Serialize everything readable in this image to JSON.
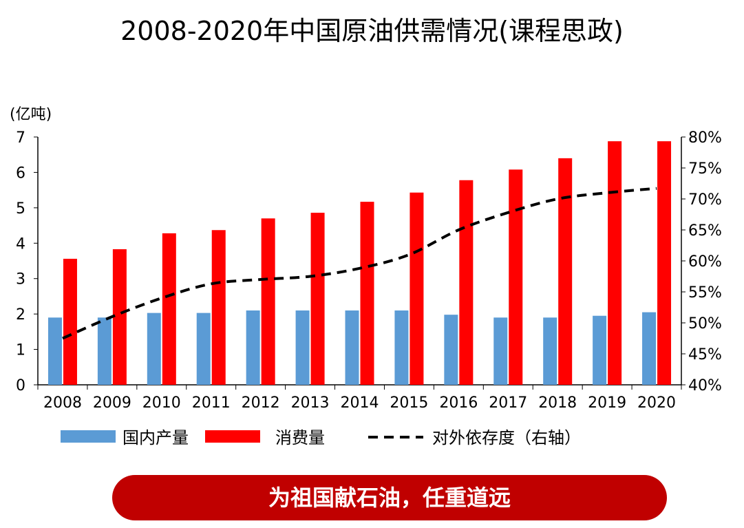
{
  "title": "2008-2020年中国原油供需情况(课程思政)",
  "banner_text": "为祖国献石油，任重道远",
  "colors": {
    "production": "#5b9bd5",
    "consumption": "#ff0000",
    "dependency": "#000000",
    "banner": "#c00000"
  },
  "chart_data": {
    "type": "bar",
    "title": "2008-2020年中国原油供需情况(课程思政)",
    "ylabel": "(亿吨)",
    "categories": [
      "2008",
      "2009",
      "2010",
      "2011",
      "2012",
      "2013",
      "2014",
      "2015",
      "2016",
      "2017",
      "2018",
      "2019",
      "2020"
    ],
    "ylim": [
      0,
      7
    ],
    "yticks": [
      "0",
      "1",
      "2",
      "3",
      "4",
      "5",
      "6",
      "7"
    ],
    "y2lim": [
      40,
      80
    ],
    "y2ticks": [
      "40%",
      "45%",
      "50%",
      "55%",
      "60%",
      "65%",
      "70%",
      "75%",
      "80%"
    ],
    "series": [
      {
        "name": "国内产量",
        "kind": "bar",
        "axis": "left",
        "values": [
          1.9,
          1.9,
          2.03,
          2.03,
          2.1,
          2.1,
          2.1,
          2.1,
          1.98,
          1.9,
          1.9,
          1.95,
          2.05
        ]
      },
      {
        "name": "消费量",
        "kind": "bar",
        "axis": "left",
        "values": [
          3.56,
          3.83,
          4.28,
          4.37,
          4.7,
          4.86,
          5.17,
          5.43,
          5.78,
          6.08,
          6.4,
          6.88,
          6.88
        ]
      },
      {
        "name": "对外依存度（右轴）",
        "kind": "line",
        "style": "dashed",
        "axis": "right",
        "values": [
          47.5,
          51,
          54,
          56.3,
          57,
          57.5,
          58.8,
          61,
          65,
          67.8,
          70,
          71,
          71.7
        ]
      }
    ]
  }
}
